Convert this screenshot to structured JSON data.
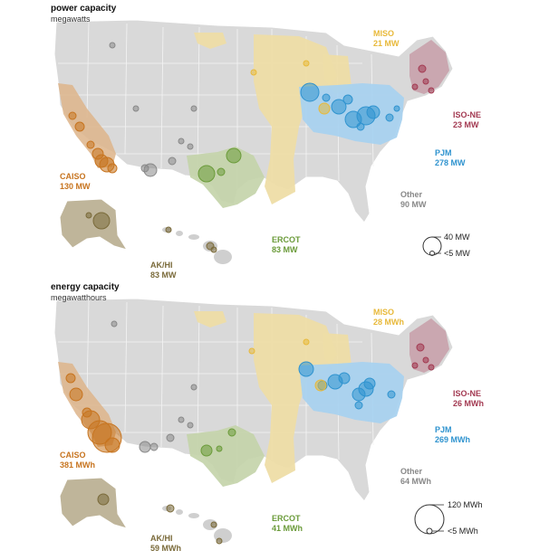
{
  "panels": [
    {
      "title": "power capacity",
      "subtitle": "megawatts",
      "regions": {
        "miso": {
          "name": "MISO",
          "value": "21 MW"
        },
        "isone": {
          "name": "ISO-NE",
          "value": "23 MW"
        },
        "pjm": {
          "name": "PJM",
          "value": "278 MW"
        },
        "other": {
          "name": "Other",
          "value": "90 MW"
        },
        "caiso": {
          "name": "CAISO",
          "value": "130 MW"
        },
        "ercot": {
          "name": "ERCOT",
          "value": "83 MW"
        },
        "akhi": {
          "name": "AK/HI",
          "value": "83 MW"
        }
      },
      "legend": {
        "large": "40 MW",
        "small": "<5 MW"
      }
    },
    {
      "title": "energy capacity",
      "subtitle": "megawatthours",
      "regions": {
        "miso": {
          "name": "MISO",
          "value": "28 MWh"
        },
        "isone": {
          "name": "ISO-NE",
          "value": "26 MWh"
        },
        "pjm": {
          "name": "PJM",
          "value": "269 MWh"
        },
        "other": {
          "name": "Other",
          "value": "64 MWh"
        },
        "caiso": {
          "name": "CAISO",
          "value": "381 MWh"
        },
        "ercot": {
          "name": "ERCOT",
          "value": "41 MWh"
        },
        "akhi": {
          "name": "AK/HI",
          "value": "59 MWh"
        }
      },
      "legend": {
        "large": "120 MWh",
        "small": "<5 MWh"
      }
    }
  ],
  "colors": {
    "miso": "#e8b93a",
    "isone": "#a33a52",
    "pjm": "#2f93cf",
    "other": "#888888",
    "caiso": "#c7741f",
    "ercot": "#6b9b3a",
    "akhi": "#7a6a3a",
    "land": "#d9d9d9"
  }
}
